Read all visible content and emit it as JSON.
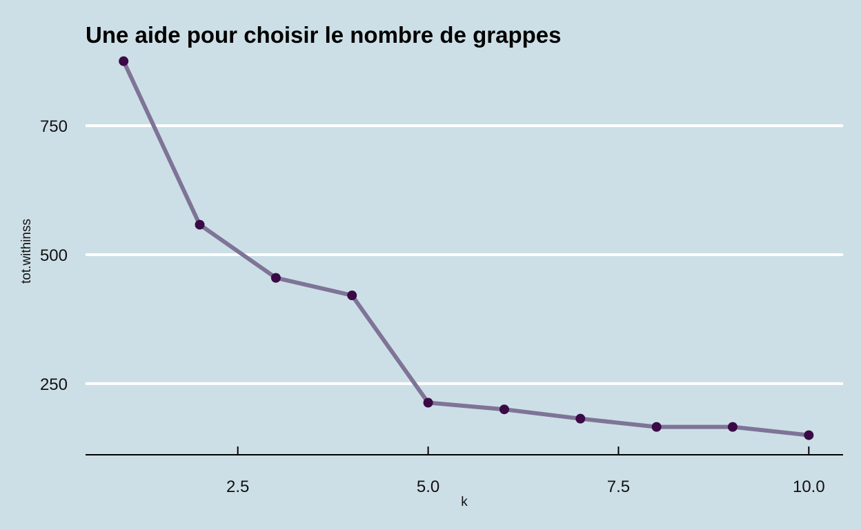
{
  "chart_data": {
    "type": "line",
    "title": "Une aide pour choisir le nombre de grappes",
    "xlabel": "k",
    "ylabel": "tot.withinss",
    "x": [
      1,
      2,
      3,
      4,
      5,
      6,
      7,
      8,
      9,
      10
    ],
    "series": [
      {
        "values": [
          875,
          558,
          455,
          421,
          213,
          200,
          182,
          166,
          166,
          150
        ]
      }
    ],
    "xticks": [
      2.5,
      5.0,
      7.5,
      10.0
    ],
    "xtick_labels": [
      "2.5",
      "5.0",
      "7.5",
      "10.0"
    ],
    "yticks": [
      250,
      500,
      750
    ],
    "ytick_labels": [
      "250",
      "500",
      "750"
    ],
    "xlim": [
      0.5,
      10.45
    ],
    "ylim": [
      112,
      900
    ],
    "grid": "horizontal major",
    "colors": {
      "background": "#cddfe6",
      "line": "#7e7497",
      "point": "#3a0a47",
      "grid": "#ffffff",
      "axis": "#000000"
    }
  }
}
